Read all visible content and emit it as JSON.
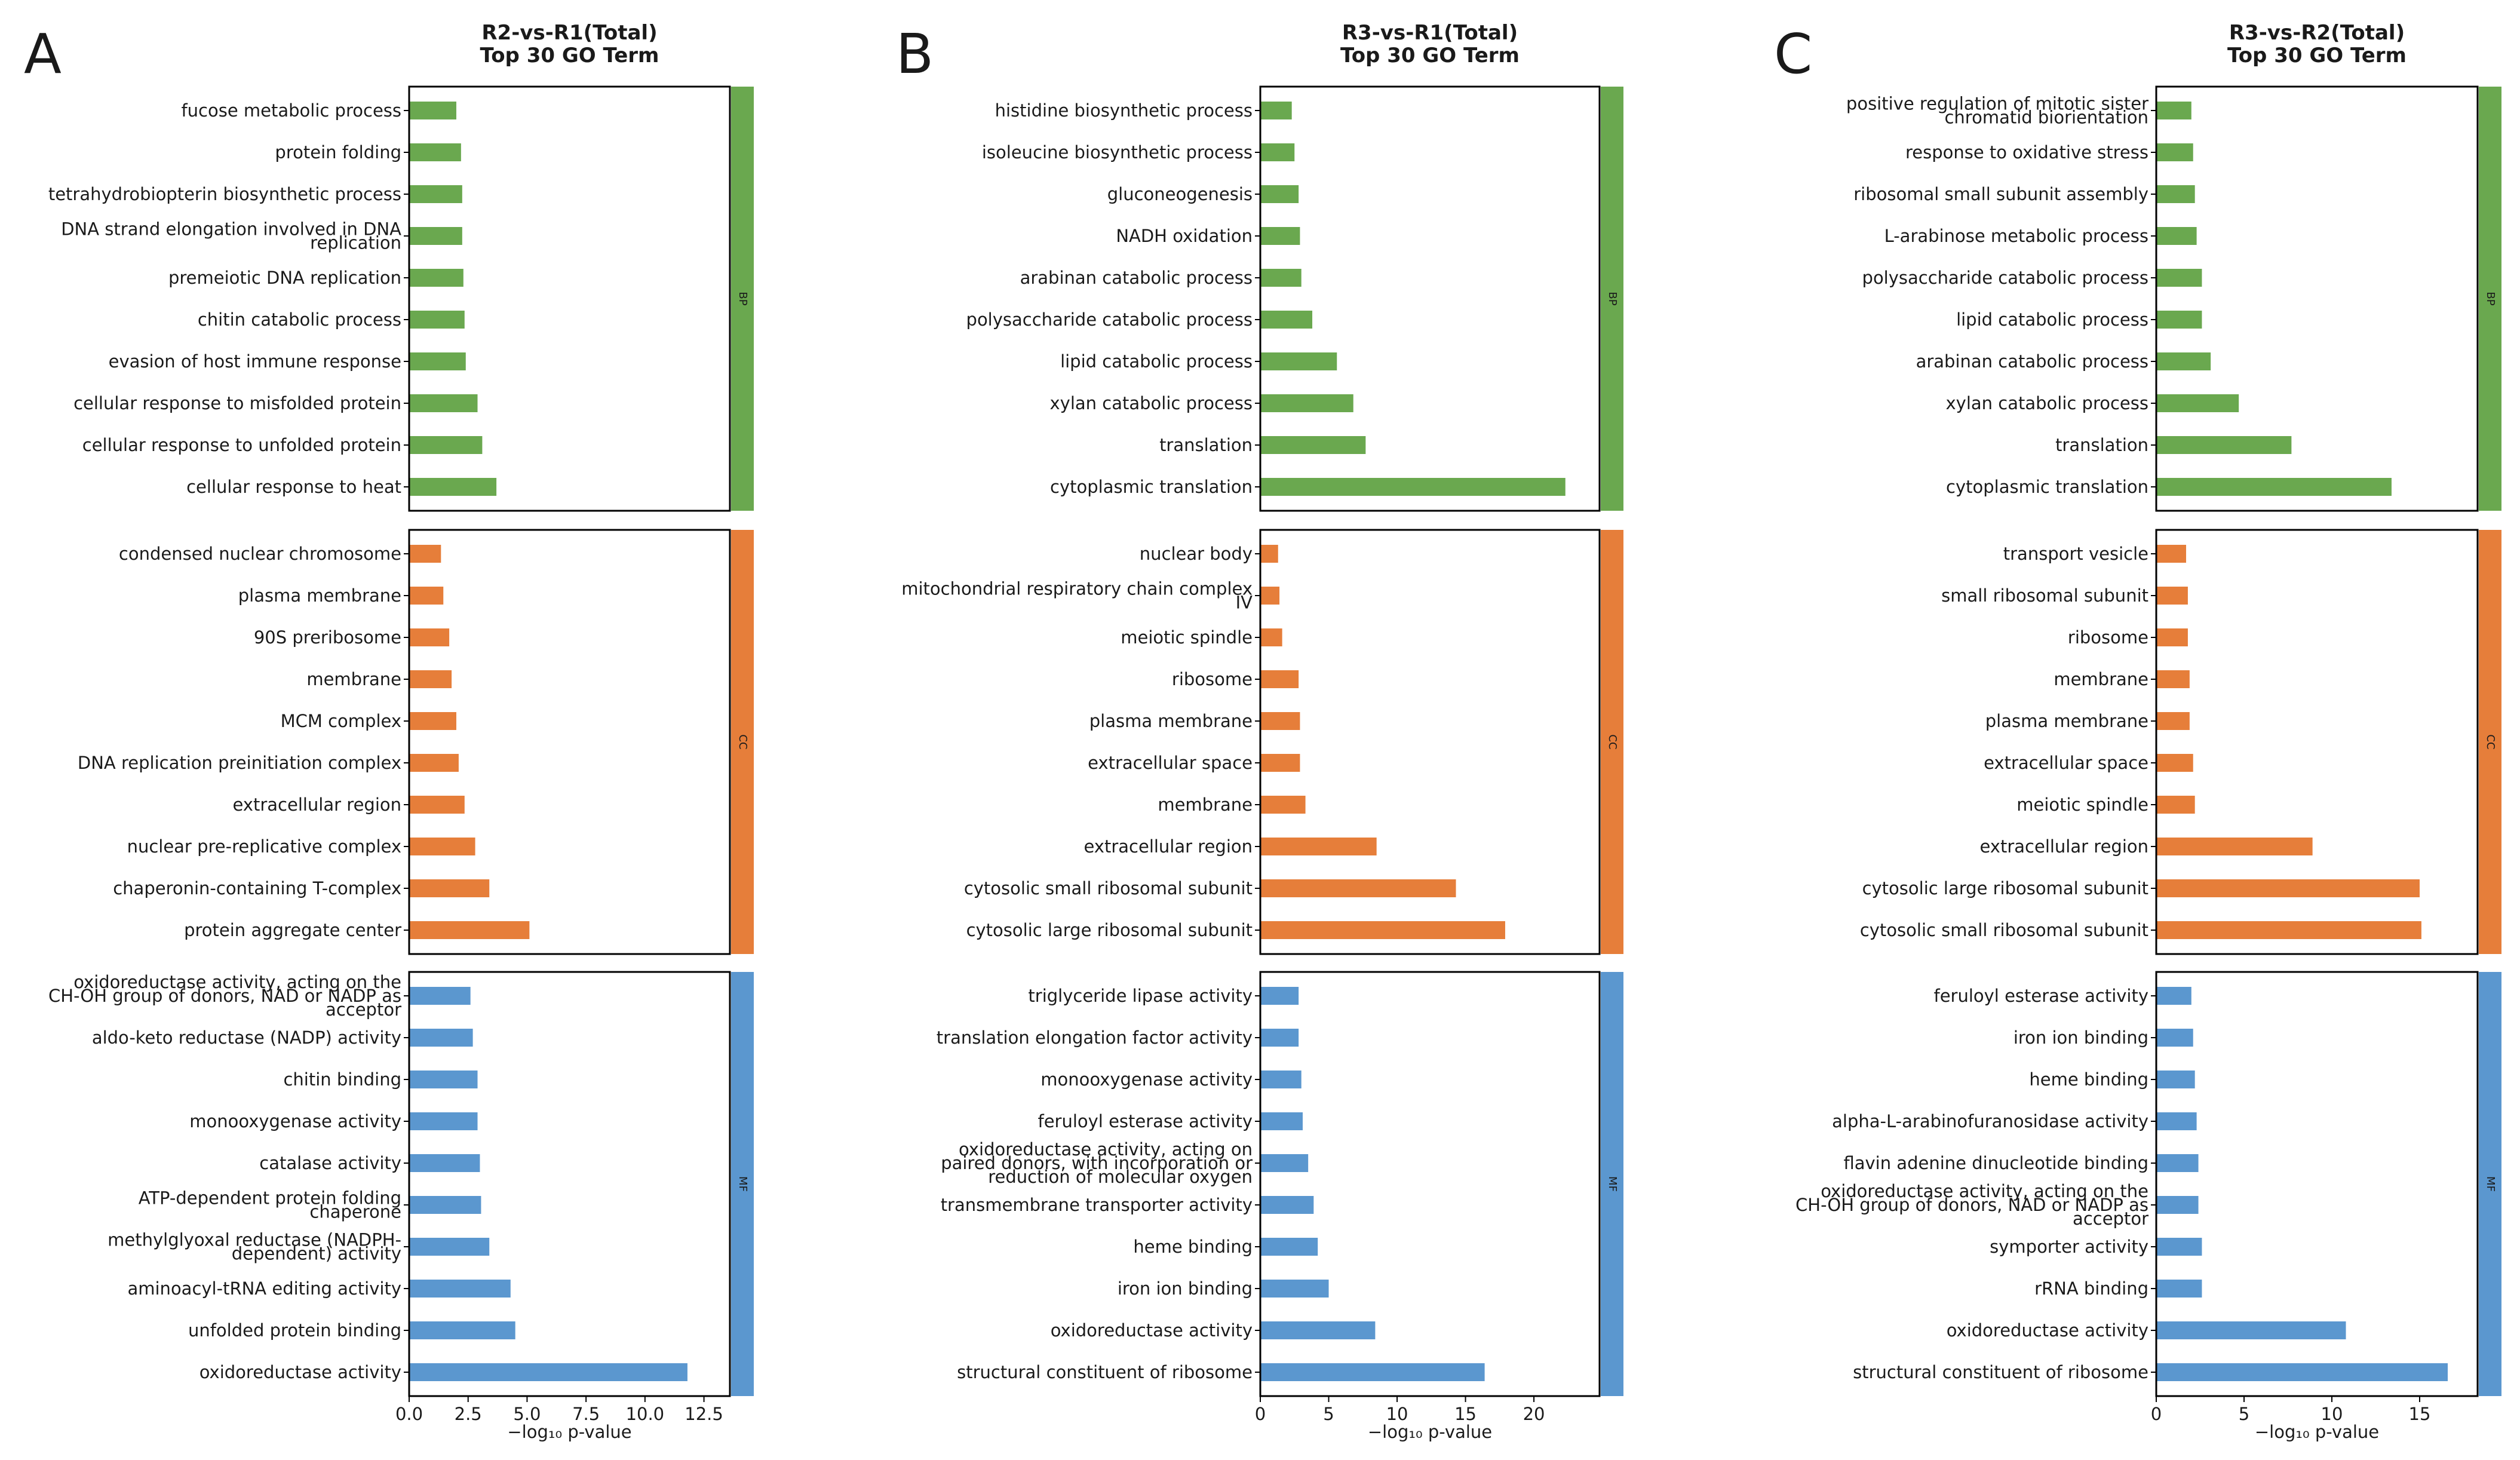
{
  "colors": {
    "BP": "#6aa84f",
    "CC": "#e67e3a",
    "MF": "#5b97cf"
  },
  "chart_data": [
    {
      "type": "bar",
      "panel_label": "A",
      "title": [
        "R2-vs-R1(Total)",
        "Top 30 GO Term"
      ],
      "xlabel": "−log₁₀ p-value",
      "xlim": [
        0,
        13.6
      ],
      "xticks": [
        "0.0",
        "2.5",
        "5.0",
        "7.5",
        "10.0",
        "12.5"
      ],
      "xtick_values": [
        0,
        2.5,
        5,
        7.5,
        10,
        12.5
      ],
      "groups": [
        {
          "category": "BP",
          "terms": [
            {
              "label": [
                "fucose metabolic process"
              ],
              "value": 2.0
            },
            {
              "label": [
                "protein folding"
              ],
              "value": 2.2
            },
            {
              "label": [
                "tetrahydrobiopterin biosynthetic process"
              ],
              "value": 2.25
            },
            {
              "label": [
                "DNA strand elongation involved in DNA",
                "replication"
              ],
              "value": 2.25
            },
            {
              "label": [
                "premeiotic DNA replication"
              ],
              "value": 2.3
            },
            {
              "label": [
                "chitin catabolic process"
              ],
              "value": 2.35
            },
            {
              "label": [
                "evasion of host immune response"
              ],
              "value": 2.4
            },
            {
              "label": [
                "cellular response to misfolded protein"
              ],
              "value": 2.9
            },
            {
              "label": [
                "cellular response to unfolded protein"
              ],
              "value": 3.1
            },
            {
              "label": [
                "cellular response to heat"
              ],
              "value": 3.7
            }
          ]
        },
        {
          "category": "CC",
          "terms": [
            {
              "label": [
                "condensed nuclear chromosome"
              ],
              "value": 1.35
            },
            {
              "label": [
                "plasma membrane"
              ],
              "value": 1.45
            },
            {
              "label": [
                "90S preribosome"
              ],
              "value": 1.7
            },
            {
              "label": [
                "membrane"
              ],
              "value": 1.8
            },
            {
              "label": [
                "MCM complex"
              ],
              "value": 2.0
            },
            {
              "label": [
                "DNA replication preinitiation complex"
              ],
              "value": 2.1
            },
            {
              "label": [
                "extracellular region"
              ],
              "value": 2.35
            },
            {
              "label": [
                "nuclear pre-replicative complex"
              ],
              "value": 2.8
            },
            {
              "label": [
                "chaperonin-containing T-complex"
              ],
              "value": 3.4
            },
            {
              "label": [
                "protein aggregate center"
              ],
              "value": 5.1
            }
          ]
        },
        {
          "category": "MF",
          "terms": [
            {
              "label": [
                "oxidoreductase activity, acting on the",
                "CH-OH group of donors, NAD or NADP as",
                "acceptor"
              ],
              "value": 2.6
            },
            {
              "label": [
                "aldo-keto reductase (NADP) activity"
              ],
              "value": 2.7
            },
            {
              "label": [
                "chitin binding"
              ],
              "value": 2.9
            },
            {
              "label": [
                "monooxygenase activity"
              ],
              "value": 2.9
            },
            {
              "label": [
                "catalase activity"
              ],
              "value": 3.0
            },
            {
              "label": [
                "ATP-dependent protein folding",
                "chaperone"
              ],
              "value": 3.05
            },
            {
              "label": [
                "methylglyoxal reductase (NADPH-",
                "dependent) activity"
              ],
              "value": 3.4
            },
            {
              "label": [
                "aminoacyl-tRNA editing activity"
              ],
              "value": 4.3
            },
            {
              "label": [
                "unfolded protein binding"
              ],
              "value": 4.5
            },
            {
              "label": [
                "oxidoreductase activity"
              ],
              "value": 11.8
            }
          ]
        }
      ]
    },
    {
      "type": "bar",
      "panel_label": "B",
      "title": [
        "R3-vs-R1(Total)",
        "Top 30 GO Term"
      ],
      "xlabel": "−log₁₀ p-value",
      "xlim": [
        0,
        24.8
      ],
      "xticks": [
        "0",
        "5",
        "10",
        "15",
        "20"
      ],
      "xtick_values": [
        0,
        5,
        10,
        15,
        20
      ],
      "groups": [
        {
          "category": "BP",
          "terms": [
            {
              "label": [
                "histidine biosynthetic process"
              ],
              "value": 2.3
            },
            {
              "label": [
                "isoleucine biosynthetic process"
              ],
              "value": 2.5
            },
            {
              "label": [
                "gluconeogenesis"
              ],
              "value": 2.8
            },
            {
              "label": [
                "NADH oxidation"
              ],
              "value": 2.9
            },
            {
              "label": [
                "arabinan catabolic process"
              ],
              "value": 3.0
            },
            {
              "label": [
                "polysaccharide catabolic process"
              ],
              "value": 3.8
            },
            {
              "label": [
                "lipid catabolic process"
              ],
              "value": 5.6
            },
            {
              "label": [
                "xylan catabolic process"
              ],
              "value": 6.8
            },
            {
              "label": [
                "translation"
              ],
              "value": 7.7
            },
            {
              "label": [
                "cytoplasmic translation"
              ],
              "value": 22.3
            }
          ]
        },
        {
          "category": "CC",
          "terms": [
            {
              "label": [
                "nuclear body"
              ],
              "value": 1.3
            },
            {
              "label": [
                "mitochondrial respiratory chain complex",
                "IV"
              ],
              "value": 1.4
            },
            {
              "label": [
                "meiotic spindle"
              ],
              "value": 1.6
            },
            {
              "label": [
                "ribosome"
              ],
              "value": 2.8
            },
            {
              "label": [
                "plasma membrane"
              ],
              "value": 2.9
            },
            {
              "label": [
                "extracellular space"
              ],
              "value": 2.9
            },
            {
              "label": [
                "membrane"
              ],
              "value": 3.3
            },
            {
              "label": [
                "extracellular region"
              ],
              "value": 8.5
            },
            {
              "label": [
                "cytosolic small ribosomal subunit"
              ],
              "value": 14.3
            },
            {
              "label": [
                "cytosolic large ribosomal subunit"
              ],
              "value": 17.9
            }
          ]
        },
        {
          "category": "MF",
          "terms": [
            {
              "label": [
                "triglyceride lipase activity"
              ],
              "value": 2.8
            },
            {
              "label": [
                "translation elongation factor activity"
              ],
              "value": 2.8
            },
            {
              "label": [
                "monooxygenase activity"
              ],
              "value": 3.0
            },
            {
              "label": [
                "feruloyl esterase activity"
              ],
              "value": 3.1
            },
            {
              "label": [
                "oxidoreductase activity, acting on",
                "paired donors, with incorporation or",
                "reduction of molecular oxygen"
              ],
              "value": 3.5
            },
            {
              "label": [
                "transmembrane transporter activity"
              ],
              "value": 3.9
            },
            {
              "label": [
                "heme binding"
              ],
              "value": 4.2
            },
            {
              "label": [
                "iron ion binding"
              ],
              "value": 5.0
            },
            {
              "label": [
                "oxidoreductase activity"
              ],
              "value": 8.4
            },
            {
              "label": [
                "structural constituent of ribosome"
              ],
              "value": 16.4
            }
          ]
        }
      ]
    },
    {
      "type": "bar",
      "panel_label": "C",
      "title": [
        "R3-vs-R2(Total)",
        "Top 30 GO Term"
      ],
      "xlabel": "−log₁₀ p-value",
      "xlim": [
        0,
        18.3
      ],
      "xticks": [
        "0",
        "5",
        "10",
        "15"
      ],
      "xtick_values": [
        0,
        5,
        10,
        15
      ],
      "groups": [
        {
          "category": "BP",
          "terms": [
            {
              "label": [
                "positive regulation of mitotic sister",
                "chromatid biorientation"
              ],
              "value": 2.0
            },
            {
              "label": [
                "response to oxidative stress"
              ],
              "value": 2.1
            },
            {
              "label": [
                "ribosomal small subunit assembly"
              ],
              "value": 2.2
            },
            {
              "label": [
                "L-arabinose metabolic process"
              ],
              "value": 2.3
            },
            {
              "label": [
                "polysaccharide catabolic process"
              ],
              "value": 2.6
            },
            {
              "label": [
                "lipid catabolic process"
              ],
              "value": 2.6
            },
            {
              "label": [
                "arabinan catabolic process"
              ],
              "value": 3.1
            },
            {
              "label": [
                "xylan catabolic process"
              ],
              "value": 4.7
            },
            {
              "label": [
                "translation"
              ],
              "value": 7.7
            },
            {
              "label": [
                "cytoplasmic translation"
              ],
              "value": 13.4
            }
          ]
        },
        {
          "category": "CC",
          "terms": [
            {
              "label": [
                "transport vesicle"
              ],
              "value": 1.7
            },
            {
              "label": [
                "small ribosomal subunit"
              ],
              "value": 1.8
            },
            {
              "label": [
                "ribosome"
              ],
              "value": 1.8
            },
            {
              "label": [
                "membrane"
              ],
              "value": 1.9
            },
            {
              "label": [
                "plasma membrane"
              ],
              "value": 1.9
            },
            {
              "label": [
                "extracellular space"
              ],
              "value": 2.1
            },
            {
              "label": [
                "meiotic spindle"
              ],
              "value": 2.2
            },
            {
              "label": [
                "extracellular region"
              ],
              "value": 8.9
            },
            {
              "label": [
                "cytosolic large ribosomal subunit"
              ],
              "value": 15.0
            },
            {
              "label": [
                "cytosolic small ribosomal subunit"
              ],
              "value": 15.1
            }
          ]
        },
        {
          "category": "MF",
          "terms": [
            {
              "label": [
                "feruloyl esterase activity"
              ],
              "value": 2.0
            },
            {
              "label": [
                "iron ion binding"
              ],
              "value": 2.1
            },
            {
              "label": [
                "heme binding"
              ],
              "value": 2.2
            },
            {
              "label": [
                "alpha-L-arabinofuranosidase activity"
              ],
              "value": 2.3
            },
            {
              "label": [
                "flavin adenine dinucleotide binding"
              ],
              "value": 2.4
            },
            {
              "label": [
                "oxidoreductase activity, acting on the",
                "CH-OH group of donors, NAD or NADP as",
                "acceptor"
              ],
              "value": 2.4
            },
            {
              "label": [
                "symporter activity"
              ],
              "value": 2.6
            },
            {
              "label": [
                "rRNA binding"
              ],
              "value": 2.6
            },
            {
              "label": [
                "oxidoreductase activity"
              ],
              "value": 10.8
            },
            {
              "label": [
                "structural constituent of ribosome"
              ],
              "value": 16.6
            }
          ]
        }
      ]
    }
  ]
}
